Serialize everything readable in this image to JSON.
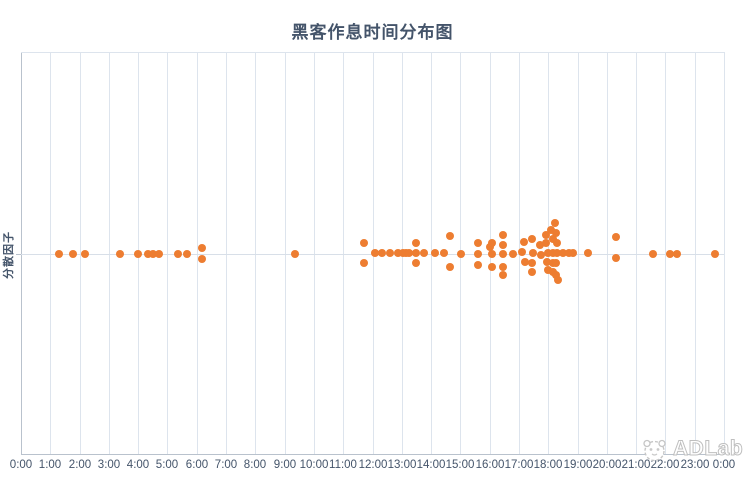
{
  "title": "黑客作息时间分布图",
  "watermark": {
    "text": "ADLab",
    "logo": "panda-face-icon"
  },
  "colors": {
    "point": "#ED7D31",
    "text": "#44546A",
    "gridline": "#dde4ed",
    "axis_line": "#b9c2cd",
    "center_line": "#d8dfe8",
    "watermark": "#bfbfbf"
  },
  "chart_data": {
    "type": "scatter",
    "title": "黑客作息时间分布图",
    "xlabel": "",
    "ylabel": "分散因子",
    "x_unit": "hours (time of day)",
    "xlim": [
      0,
      24
    ],
    "ylim": [
      -1.5,
      1.5
    ],
    "grid": "vertical-hourly",
    "legend": "none",
    "x_ticks": [
      "0:00",
      "1:00",
      "2:00",
      "3:00",
      "4:00",
      "5:00",
      "6:00",
      "7:00",
      "8:00",
      "9:00",
      "10:00",
      "11:00",
      "12:00",
      "13:00",
      "14:00",
      "15:00",
      "16:00",
      "17:00",
      "18:00",
      "19:00",
      "20:00",
      "21:00",
      "22:00",
      "23:00",
      "0:00"
    ],
    "points": [
      [
        1.31,
        0
      ],
      [
        1.78,
        0
      ],
      [
        2.18,
        0
      ],
      [
        3.38,
        0
      ],
      [
        4.0,
        0
      ],
      [
        4.35,
        0
      ],
      [
        4.51,
        0
      ],
      [
        4.72,
        0
      ],
      [
        5.37,
        0
      ],
      [
        5.66,
        0
      ],
      [
        6.19,
        0.2
      ],
      [
        6.19,
        -0.16
      ],
      [
        9.35,
        0
      ],
      [
        11.72,
        0.36
      ],
      [
        11.72,
        -0.29
      ],
      [
        12.08,
        0.02
      ],
      [
        12.33,
        0.02
      ],
      [
        12.59,
        0.02
      ],
      [
        12.86,
        0.02
      ],
      [
        13.03,
        0.02
      ],
      [
        13.13,
        0.02
      ],
      [
        13.25,
        0.02
      ],
      [
        13.5,
        0.36
      ],
      [
        13.5,
        0.02
      ],
      [
        13.5,
        -0.29
      ],
      [
        13.75,
        0.02
      ],
      [
        14.13,
        0.02
      ],
      [
        14.45,
        0.02
      ],
      [
        14.64,
        0.6
      ],
      [
        14.64,
        -0.42
      ],
      [
        15.01,
        0
      ],
      [
        15.61,
        0.36
      ],
      [
        15.61,
        0
      ],
      [
        15.61,
        -0.36
      ],
      [
        16.0,
        0.23
      ],
      [
        16.07,
        0.36
      ],
      [
        16.09,
        0
      ],
      [
        16.09,
        -0.42
      ],
      [
        16.46,
        0.63
      ],
      [
        16.46,
        0.3
      ],
      [
        16.46,
        0
      ],
      [
        16.46,
        -0.42
      ],
      [
        16.46,
        -0.7
      ],
      [
        16.8,
        0
      ],
      [
        17.09,
        0.06
      ],
      [
        17.16,
        0.41
      ],
      [
        17.2,
        -0.26
      ],
      [
        17.43,
        -0.59
      ],
      [
        17.46,
        0.49
      ],
      [
        17.49,
        0.02
      ],
      [
        17.46,
        -0.31
      ],
      [
        17.71,
        0.3
      ],
      [
        17.74,
        -0.03
      ],
      [
        17.92,
        0.63
      ],
      [
        17.94,
        0.36
      ],
      [
        18.0,
        0.04
      ],
      [
        17.96,
        -0.26
      ],
      [
        18.0,
        -0.53
      ],
      [
        18.11,
        0.8
      ],
      [
        18.15,
        0.49
      ],
      [
        18.17,
        0.04
      ],
      [
        18.17,
        -0.31
      ],
      [
        18.15,
        -0.59
      ],
      [
        18.22,
        1.02
      ],
      [
        18.28,
        0.69
      ],
      [
        18.3,
        0.36
      ],
      [
        18.3,
        0.04
      ],
      [
        18.28,
        -0.31
      ],
      [
        18.26,
        -0.7
      ],
      [
        18.34,
        -0.87
      ],
      [
        18.51,
        0.04
      ],
      [
        18.71,
        0.04
      ],
      [
        18.85,
        0.04
      ],
      [
        19.36,
        0.04
      ],
      [
        20.31,
        0.57
      ],
      [
        20.33,
        -0.14
      ],
      [
        21.57,
        0
      ],
      [
        22.15,
        0
      ],
      [
        22.39,
        0
      ],
      [
        23.69,
        0
      ]
    ]
  }
}
